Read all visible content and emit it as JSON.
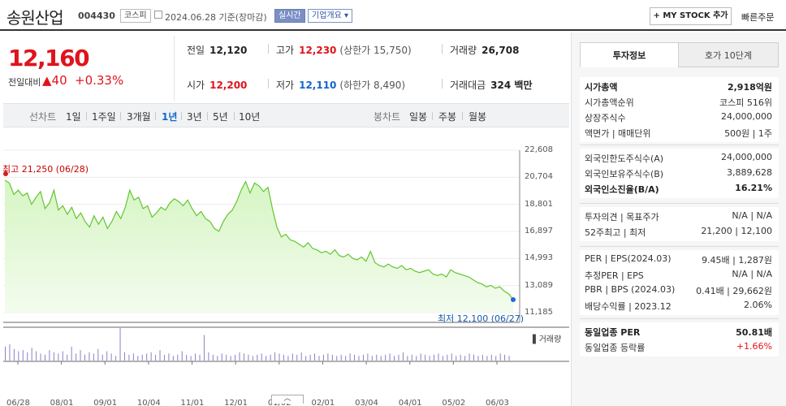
{
  "header": {
    "name": "송원산업",
    "code": "004430",
    "market": "코스피",
    "date": "2024.06.28 기준(장마감)",
    "realtime": "실시간",
    "overview": "기업개요 ▾",
    "mystock": "+ MY STOCK 추가",
    "quick_order": "빠른주문"
  },
  "price": {
    "current": "12,160",
    "change_label": "전일대비",
    "change": "▲40",
    "change_pct": "+0.33%"
  },
  "quote": {
    "prev_label": "전일",
    "prev": "12,120",
    "high_label": "고가",
    "high": "12,230",
    "upper_limit": "(상한가 15,750)",
    "volume_label": "거래량",
    "volume": "26,708",
    "open_label": "시가",
    "open": "12,200",
    "low_label": "저가",
    "low": "12,110",
    "lower_limit": "(하한가 8,490)",
    "value_label": "거래대금",
    "value": "324 백만"
  },
  "period": {
    "line_label": "선차트",
    "items": [
      "1일",
      "1주일",
      "3개월",
      "1년",
      "3년",
      "5년",
      "10년"
    ],
    "active": "1년",
    "candle_label": "봉차트",
    "candle_items": [
      "일봉",
      "주봉",
      "월봉"
    ]
  },
  "chart_data": {
    "type": "area",
    "y_ticks": [
      "22,608",
      "20,704",
      "18,801",
      "16,897",
      "14,993",
      "13,089",
      "11,185"
    ],
    "ylim": [
      11185,
      22608
    ],
    "x_ticks": [
      "06/28",
      "08/01",
      "09/01",
      "10/04",
      "11/01",
      "12/01",
      "01/02",
      "02/01",
      "03/04",
      "04/01",
      "05/02",
      "06/03"
    ],
    "high_annotation": "최고 21,250 (06/28)",
    "low_annotation": "최저 12,100 (06/27)",
    "volume_label": "거래량",
    "values": [
      20500,
      20300,
      19500,
      19800,
      19400,
      19600,
      18800,
      19300,
      19700,
      18500,
      18900,
      19800,
      18400,
      18700,
      18100,
      18600,
      17800,
      18200,
      17600,
      17200,
      18000,
      17400,
      17900,
      17100,
      17600,
      18300,
      17800,
      18600,
      19800,
      19100,
      19300,
      18500,
      18700,
      17900,
      18200,
      18600,
      18400,
      18900,
      19200,
      19000,
      18700,
      19100,
      18500,
      18000,
      18300,
      17800,
      17600,
      17100,
      16900,
      17600,
      18100,
      18400,
      19000,
      19800,
      20400,
      19600,
      20300,
      20100,
      19700,
      20000,
      18500,
      17200,
      16500,
      16700,
      16300,
      16200,
      16000,
      15800,
      16100,
      15700,
      15600,
      15400,
      15500,
      15300,
      15600,
      15200,
      15100,
      15300,
      15000,
      14900,
      15100,
      14800,
      15500,
      14700,
      14500,
      14400,
      14600,
      14400,
      14300,
      14500,
      14200,
      14300,
      14100,
      14000,
      14100,
      14200,
      13900,
      13800,
      13900,
      13700,
      14200,
      14000,
      13900,
      13800,
      13700,
      13500,
      13300,
      13200,
      13000,
      13100,
      12900,
      13000,
      12700,
      12500,
      12100
    ],
    "volumes": [
      12,
      14,
      10,
      8,
      9,
      7,
      11,
      8,
      6,
      5,
      9,
      7,
      6,
      8,
      5,
      12,
      6,
      9,
      5,
      7,
      6,
      10,
      5,
      8,
      6,
      4,
      28,
      7,
      5,
      6,
      4,
      5,
      6,
      7,
      5,
      9,
      5,
      6,
      4,
      5,
      8,
      5,
      4,
      6,
      5,
      22,
      7,
      5,
      4,
      6,
      5,
      4,
      5,
      7,
      6,
      5,
      4,
      5,
      6,
      4,
      5,
      7,
      6,
      5,
      4,
      6,
      5,
      7,
      4,
      5,
      6,
      4,
      5,
      6,
      5,
      4,
      5,
      4,
      6,
      5,
      4,
      5,
      6,
      4,
      5,
      4,
      5,
      6,
      4,
      5,
      7,
      4,
      5,
      4,
      6,
      5,
      4,
      5,
      6,
      4,
      5,
      6,
      4,
      5,
      4,
      6,
      5,
      4,
      5,
      4,
      5,
      4,
      6,
      5,
      4
    ]
  },
  "handle": "︿",
  "right": {
    "tab_active": "투자정보",
    "tab_other": "호가 10단계",
    "group1": [
      {
        "k": "시가총액",
        "v": "2,918억원",
        "bold": true
      },
      {
        "k": "시가총액순위",
        "v": "코스피 516위"
      },
      {
        "k": "상장주식수",
        "v": "24,000,000"
      },
      {
        "k": "액면가 | 매매단위",
        "v": "500원 | 1주"
      }
    ],
    "group2": [
      {
        "k": "외국인한도주식수(A)",
        "v": "24,000,000"
      },
      {
        "k": "외국인보유주식수(B)",
        "v": "3,889,628"
      },
      {
        "k": "외국인소진율(B/A)",
        "v": "16.21%",
        "bold": true
      }
    ],
    "group3": [
      {
        "k": "투자의견 | 목표주가",
        "v": "N/A | N/A"
      },
      {
        "k": "52주최고 | 최저",
        "v": "21,200 | 12,100"
      }
    ],
    "group4": [
      {
        "k": "PER | EPS(2024.03)",
        "v": "9.45배 | 1,287원"
      },
      {
        "k": "추정PER | EPS",
        "v": "N/A | N/A"
      },
      {
        "k": "PBR | BPS (2024.03)",
        "v": "0.41배 | 29,662원"
      },
      {
        "k": "배당수익률 | 2023.12",
        "v": "2.06%"
      }
    ],
    "group5": [
      {
        "k": "동일업종 PER",
        "v": "50.81배",
        "bold": true
      },
      {
        "k": "동일업종 등락률",
        "v": "+1.66%",
        "red": true
      }
    ]
  }
}
